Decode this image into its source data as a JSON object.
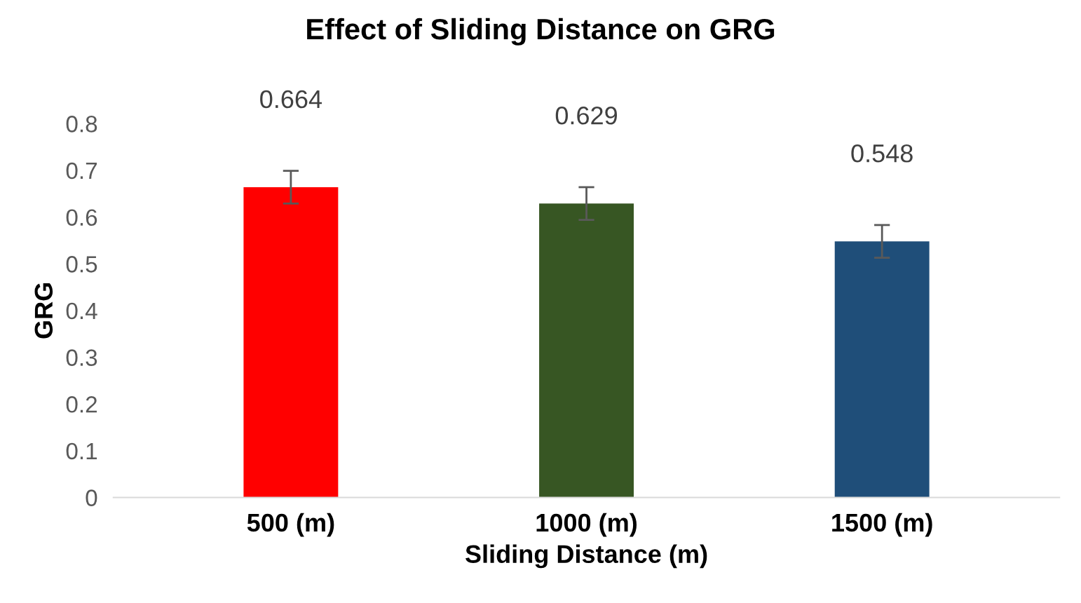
{
  "chart_data": {
    "type": "bar",
    "title": "Effect of Sliding Distance on GRG",
    "xlabel": "Sliding Distance (m)",
    "ylabel": "GRG",
    "categories": [
      "500 (m)",
      "1000 (m)",
      "1500 (m)"
    ],
    "values": [
      0.664,
      0.629,
      0.548
    ],
    "colors": [
      "#ff0000",
      "#375623",
      "#1f4e79"
    ],
    "errors": [
      0.035,
      0.035,
      0.035
    ],
    "data_labels": true,
    "ylim": [
      0,
      0.8
    ],
    "yticks": [
      0,
      0.1,
      0.2,
      0.3,
      0.4,
      0.5,
      0.6,
      0.7,
      0.8
    ],
    "grid": false,
    "legend": false
  }
}
